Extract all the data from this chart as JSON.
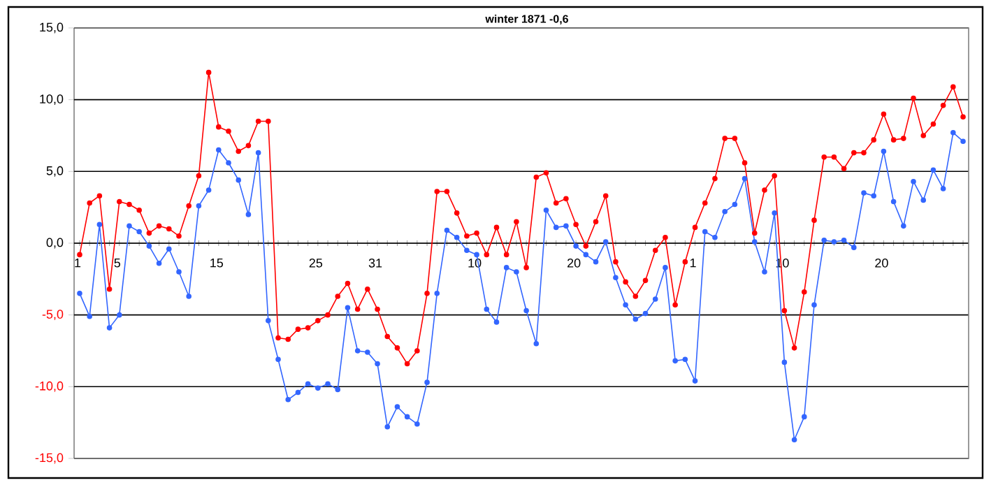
{
  "chart_data": {
    "type": "line",
    "title": "winter 1871 -0,6",
    "categories": [
      "1",
      null,
      null,
      null,
      "5",
      null,
      null,
      null,
      null,
      null,
      null,
      null,
      null,
      null,
      "15",
      null,
      null,
      null,
      null,
      null,
      null,
      null,
      null,
      null,
      "25",
      null,
      null,
      null,
      null,
      null,
      "31",
      null,
      null,
      null,
      null,
      null,
      null,
      null,
      null,
      null,
      "10",
      null,
      null,
      null,
      null,
      null,
      null,
      null,
      null,
      null,
      "20",
      null,
      null,
      null,
      null,
      null,
      null,
      null,
      null,
      null,
      null,
      null,
      "1",
      null,
      null,
      null,
      null,
      null,
      null,
      null,
      null,
      "10",
      null,
      null,
      null,
      null,
      null,
      null,
      null,
      null,
      null,
      "20",
      null,
      null,
      null,
      null,
      null,
      null,
      null,
      null
    ],
    "series": [
      {
        "color": "#ff0000",
        "values": [
          -0.8,
          2.8,
          3.3,
          -3.2,
          2.9,
          2.7,
          2.3,
          0.7,
          1.2,
          1.0,
          0.5,
          2.6,
          4.7,
          11.9,
          8.1,
          7.8,
          6.4,
          6.8,
          8.5,
          8.5,
          -6.6,
          -6.7,
          -6.0,
          -5.9,
          -5.4,
          -5.0,
          -3.7,
          -2.8,
          -4.6,
          -3.2,
          -4.6,
          -6.5,
          -7.3,
          -8.4,
          -7.5,
          -3.5,
          3.6,
          3.6,
          2.1,
          0.5,
          0.7,
          -0.8,
          1.1,
          -0.8,
          1.5,
          -1.7,
          4.6,
          4.9,
          2.8,
          3.1,
          1.3,
          -0.2,
          1.5,
          3.3,
          -1.3,
          -2.7,
          -3.7,
          -2.6,
          -0.5,
          0.4,
          -4.3,
          -1.3,
          1.1,
          2.8,
          4.5,
          7.3,
          7.3,
          5.6,
          0.7,
          3.7,
          4.7,
          -4.7,
          -7.3,
          -3.4,
          1.6,
          6.0,
          6.0,
          5.2,
          6.3,
          6.3,
          7.2,
          9.0,
          7.2,
          7.3,
          10.1,
          7.5,
          8.3,
          9.6,
          10.9,
          8.8
        ]
      },
      {
        "color": "#3366ff",
        "values": [
          -3.5,
          -5.1,
          1.3,
          -5.9,
          -5.0,
          1.2,
          0.8,
          -0.2,
          -1.4,
          -0.4,
          -2.0,
          -3.7,
          2.6,
          3.7,
          6.5,
          5.6,
          4.4,
          2.0,
          6.3,
          -5.4,
          -8.1,
          -10.9,
          -10.4,
          -9.8,
          -10.1,
          -9.8,
          -10.2,
          -4.5,
          -7.5,
          -7.6,
          -8.4,
          -12.8,
          -11.4,
          -12.1,
          -12.6,
          -9.7,
          -3.5,
          0.9,
          0.4,
          -0.5,
          -0.8,
          -4.6,
          -5.5,
          -1.7,
          -2.0,
          -4.7,
          -7.0,
          2.3,
          1.1,
          1.2,
          -0.2,
          -0.8,
          -1.3,
          0.1,
          -2.4,
          -4.3,
          -5.3,
          -4.9,
          -3.9,
          -1.7,
          -8.2,
          -8.1,
          -9.6,
          0.8,
          0.4,
          2.2,
          2.7,
          4.5,
          0.1,
          -2.0,
          2.1,
          -8.3,
          -13.7,
          -12.1,
          -4.3,
          0.2,
          0.1,
          0.2,
          -0.3,
          3.5,
          3.3,
          6.4,
          2.9,
          1.2,
          4.3,
          3.0,
          5.1,
          3.8,
          7.7,
          7.1
        ]
      }
    ],
    "ylim": [
      -15,
      15
    ],
    "yticks": [
      {
        "value": -15,
        "label": "-15,0"
      },
      {
        "value": -10,
        "label": "-10,0"
      },
      {
        "value": -5,
        "label": "-5,0"
      },
      {
        "value": 0,
        "label": "0,0"
      },
      {
        "value": 5,
        "label": "5,0"
      },
      {
        "value": 10,
        "label": "10,0"
      },
      {
        "value": 15,
        "label": "15,0"
      }
    ],
    "grid": "y",
    "marker": "circle",
    "line_style": "solid"
  }
}
